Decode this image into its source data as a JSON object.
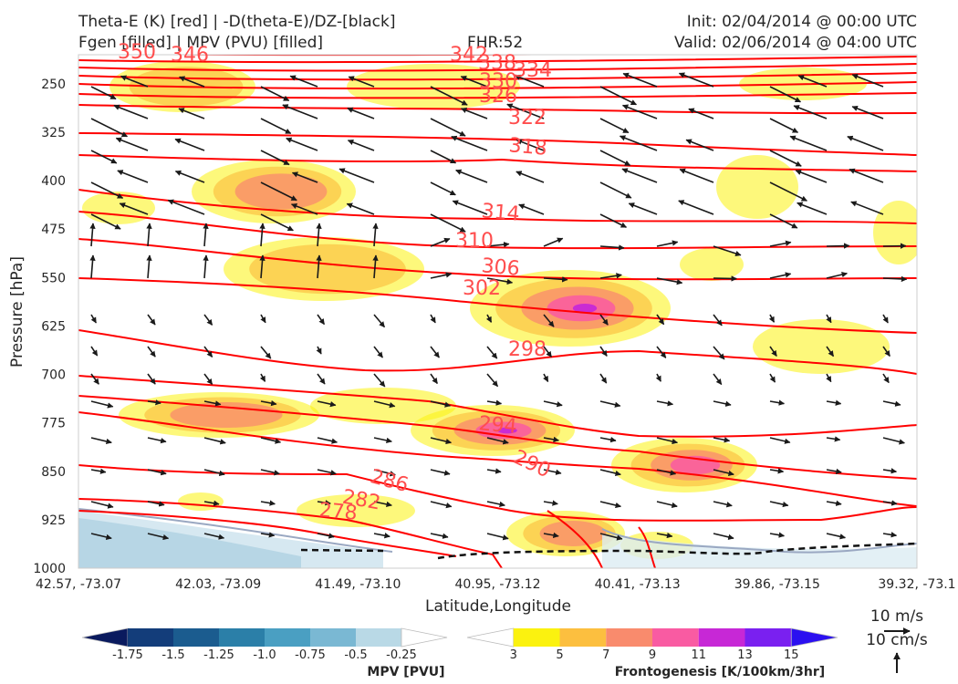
{
  "header": {
    "title_left_line1": "Theta-E (K) [red] | -D(theta-E)/DZ-[black]",
    "title_left_line2": "Fgen [filled] | MPV (PVU) [filled]",
    "fhr": "FHR:52",
    "init": "Init: 02/04/2014 @ 00:00 UTC",
    "valid": "Valid: 02/06/2014 @ 04:00 UTC"
  },
  "chart_data": {
    "type": "cross-section",
    "ylabel": "Pressure [hPa]",
    "xlabel": "Latitude,Longitude",
    "y_ticks": [
      250,
      325,
      400,
      475,
      550,
      625,
      700,
      775,
      850,
      925,
      1000
    ],
    "ylim": [
      1000,
      205
    ],
    "x_ticks": [
      "42.57, -73.07",
      "42.03, -73.09",
      "41.49, -73.10",
      "40.95, -73.12",
      "40.41, -73.13",
      "39.86, -73.15",
      "39.32, -73.1"
    ],
    "theta_e_labels": [
      {
        "text": "350"
      },
      {
        "text": "346"
      },
      {
        "text": "342"
      },
      {
        "text": "338"
      },
      {
        "text": "334"
      },
      {
        "text": "330"
      },
      {
        "text": "326"
      },
      {
        "text": "322"
      },
      {
        "text": "318"
      },
      {
        "text": "314"
      },
      {
        "text": "310"
      },
      {
        "text": "306"
      },
      {
        "text": "302"
      },
      {
        "text": "298"
      },
      {
        "text": "294"
      },
      {
        "text": "290"
      },
      {
        "text": "286"
      },
      {
        "text": "282"
      },
      {
        "text": "278"
      }
    ],
    "mpv_colorbar": {
      "label": "MPV [PVU]",
      "ticks": [
        "-1.75",
        "-1.5",
        "-1.25",
        "-1.0",
        "-0.75",
        "-0.5",
        "-0.25"
      ],
      "colors": [
        "#0a1a5e",
        "#133d7a",
        "#1b5c8f",
        "#2b7fa8",
        "#4a9fc2",
        "#7ab8d3",
        "#b9d9e6",
        "#ffffff"
      ]
    },
    "fgen_colorbar": {
      "label": "Frontogenesis [K/100km/3hr]",
      "ticks": [
        "3",
        "5",
        "7",
        "9",
        "11",
        "13",
        "15"
      ],
      "colors": [
        "#ffffff",
        "#fbf20f",
        "#fcbf3f",
        "#f98b6d",
        "#f95ba2",
        "#c728d6",
        "#7a20f0",
        "#2b10f0"
      ]
    }
  },
  "legend": {
    "wind_ref": "10 m/s",
    "vert_ref": "10 cm/s"
  }
}
